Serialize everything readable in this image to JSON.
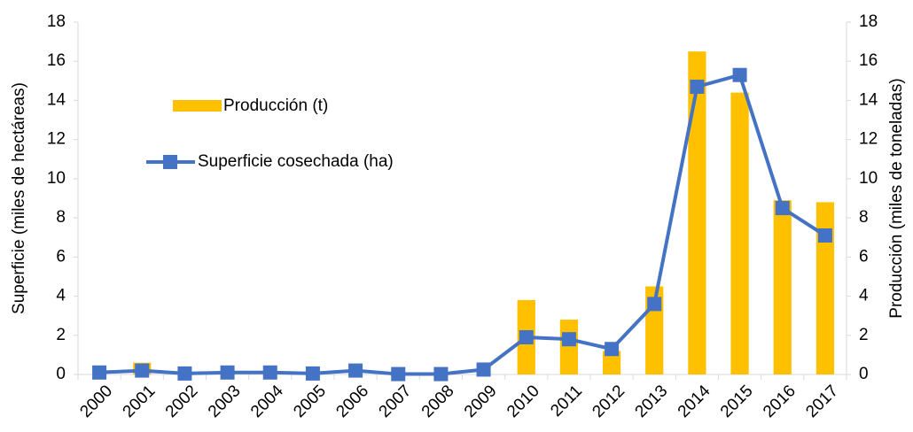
{
  "chart_data": {
    "type": "bar_line",
    "categories": [
      "2000",
      "2001",
      "2002",
      "2003",
      "2004",
      "2005",
      "2006",
      "2007",
      "2008",
      "2009",
      "2010",
      "2011",
      "2012",
      "2013",
      "2014",
      "2015",
      "2016",
      "2017"
    ],
    "series": [
      {
        "name": "Producción (t)",
        "type": "bar",
        "axis": "y2",
        "color": "#ffc000",
        "values": [
          0,
          0.6,
          0,
          0.1,
          0,
          0,
          0,
          0,
          0,
          0,
          3.8,
          2.8,
          1.2,
          4.5,
          16.5,
          14.4,
          8.9,
          8.8
        ]
      },
      {
        "name": "Superficie cosechada (ha)",
        "type": "line",
        "axis": "y",
        "color": "#4472c4",
        "values": [
          0.1,
          0.2,
          0.05,
          0.1,
          0.1,
          0.05,
          0.2,
          0.02,
          0.02,
          0.25,
          1.9,
          1.8,
          1.3,
          3.6,
          14.7,
          15.3,
          8.5,
          7.1
        ]
      }
    ],
    "y_label": "Superficie (miles de hectáreas)",
    "y2_label": "Producción (miles de toneladas)",
    "ylim": [
      0,
      18
    ],
    "yticks": [
      0,
      2,
      4,
      6,
      8,
      10,
      12,
      14,
      16,
      18
    ],
    "y2lim": [
      0,
      18
    ],
    "y2ticks": [
      0,
      2,
      4,
      6,
      8,
      10,
      12,
      14,
      16,
      18
    ]
  }
}
